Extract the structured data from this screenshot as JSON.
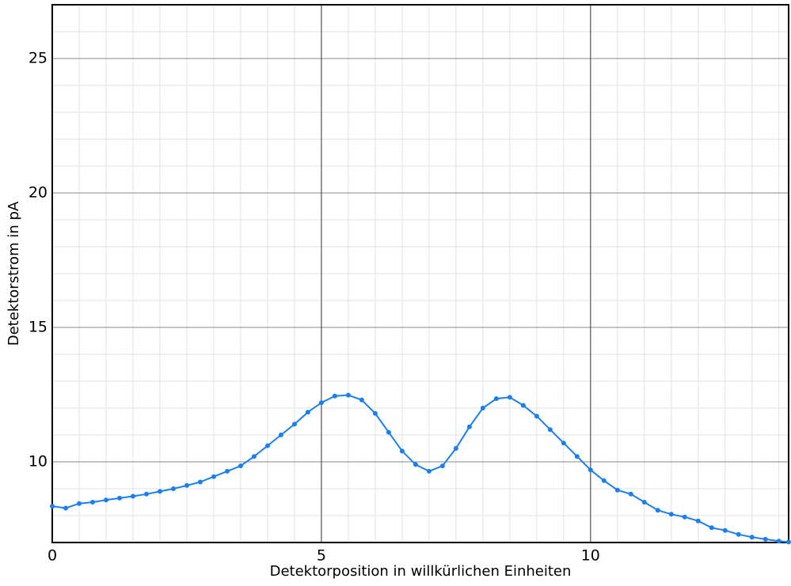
{
  "chart_data": {
    "type": "line",
    "x_label": "Detektorposition in willkürlichen Einheiten",
    "y_label": "Detektorstrom in pA",
    "x": [
      0,
      0.25,
      0.5,
      0.75,
      1,
      1.25,
      1.5,
      1.75,
      2,
      2.25,
      2.5,
      2.75,
      3,
      3.25,
      3.5,
      3.75,
      4,
      4.25,
      4.5,
      4.75,
      5,
      5.25,
      5.5,
      5.75,
      6,
      6.25,
      6.5,
      6.75,
      7,
      7.25,
      7.5,
      7.75,
      8,
      8.25,
      8.5,
      8.75,
      9,
      9.25,
      9.5,
      9.75,
      10,
      10.25,
      10.5,
      10.75,
      11,
      11.25,
      11.5,
      11.75,
      12,
      12.25,
      12.5,
      12.75,
      13,
      13.25,
      13.5,
      13.68
    ],
    "series": [
      {
        "name": "Detektorstrom",
        "color": "#1a7ff0",
        "values": [
          8.35,
          8.28,
          8.45,
          8.5,
          8.58,
          8.65,
          8.72,
          8.8,
          8.9,
          9.0,
          9.12,
          9.25,
          9.45,
          9.65,
          9.85,
          10.2,
          10.6,
          11.0,
          11.4,
          11.85,
          12.2,
          12.45,
          12.48,
          12.3,
          11.8,
          11.1,
          10.4,
          9.9,
          9.65,
          9.85,
          10.5,
          11.3,
          12.0,
          12.35,
          12.4,
          12.1,
          11.7,
          11.2,
          10.7,
          10.2,
          9.7,
          9.3,
          8.95,
          8.8,
          8.5,
          8.2,
          8.05,
          7.95,
          7.8,
          7.55,
          7.45,
          7.3,
          7.2,
          7.12,
          7.05,
          7.02
        ]
      }
    ],
    "xlim": [
      0,
      13.68
    ],
    "ylim": [
      7,
      27
    ],
    "xticks": [
      0,
      5,
      10
    ],
    "yticks": [
      10,
      15,
      20,
      25
    ],
    "grid": true
  }
}
